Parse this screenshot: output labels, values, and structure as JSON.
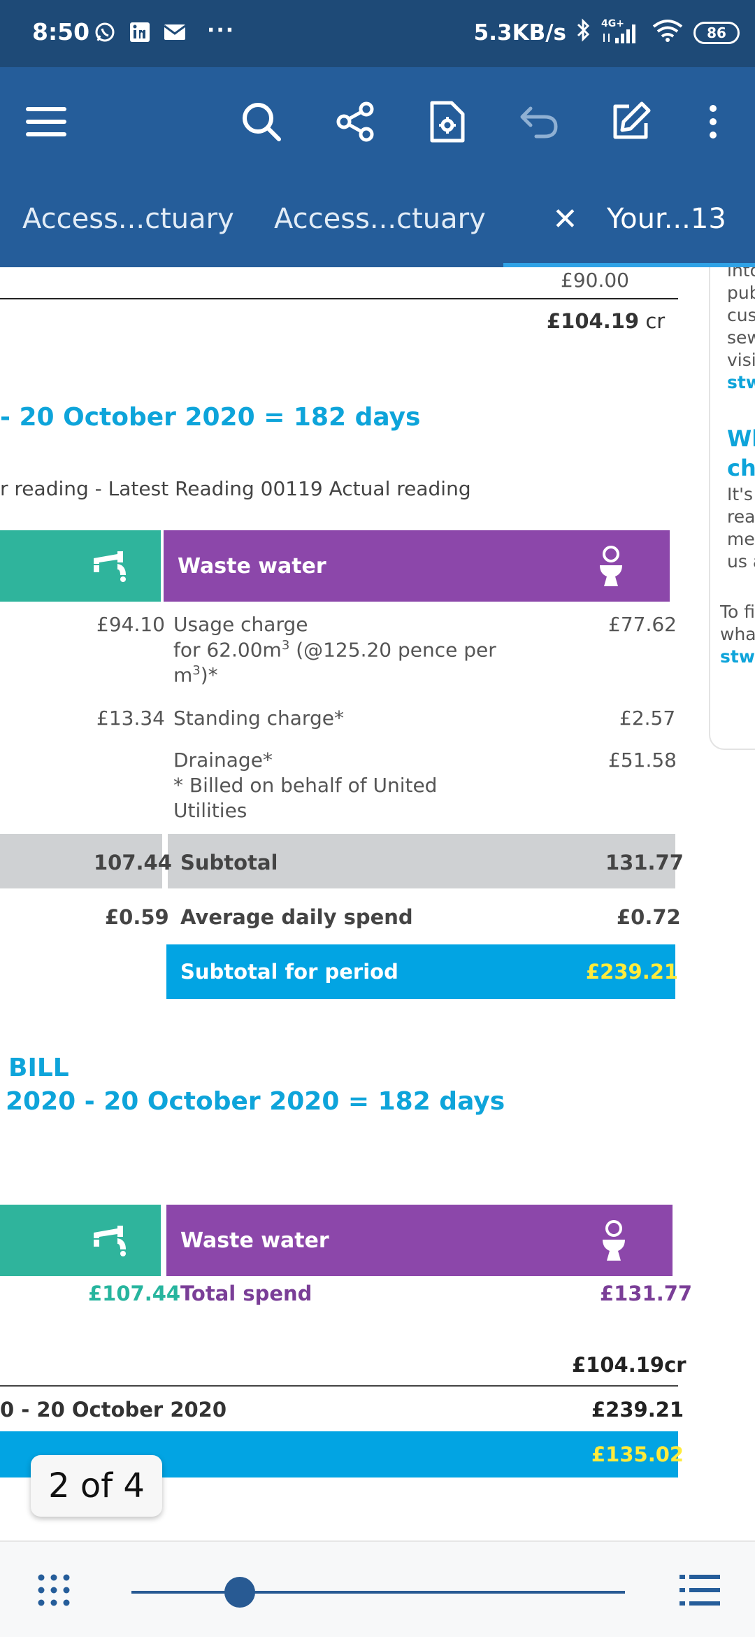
{
  "status_bar": {
    "time": "8:50",
    "speed": "5.3KB/s",
    "network": "4G+",
    "battery": "86",
    "icons": [
      "whatsapp-icon",
      "linkedin-icon",
      "mail-icon",
      "bluetooth-icon",
      "signal-icon",
      "wifi-icon"
    ],
    "overflow": "···"
  },
  "tabs": [
    {
      "label": "Access...ctuary"
    },
    {
      "label": "Access...ctuary"
    },
    {
      "label": "Your...13",
      "active": true
    }
  ],
  "tab_close": "✕",
  "document": {
    "top_value": "£90.00",
    "balance_value": "£104.19",
    "balance_suffix": "cr",
    "period_heading": "- 20 October 2020 = 182 days",
    "reading_line": "r reading  - Latest Reading 00119  Actual reading",
    "waste_header": "Waste water",
    "usage_left": "£94.10",
    "usage_label_1": "Usage charge",
    "usage_label_2": "for 62.00m",
    "usage_label_2_sup": "3",
    "usage_label_2_rest": " (@125.20 pence per",
    "usage_label_3": "m",
    "usage_label_3_sup": "3",
    "usage_label_3_rest": ")*",
    "usage_value": "£77.62",
    "standing_left": "£13.34",
    "standing_label": "Standing charge*",
    "standing_value": "£2.57",
    "drainage_label": "Drainage*",
    "drainage_note_1": " * Billed on behalf of United",
    "drainage_note_2": "Utilities",
    "drainage_value": "£51.58",
    "subtotal_left": "107.44",
    "subtotal_label": "Subtotal",
    "subtotal_value": "131.77",
    "avg_left": "£0.59",
    "avg_label": "Average daily spend",
    "avg_value": "£0.72",
    "period_total_label": "Subtotal for period",
    "period_total_value": "£239.21",
    "bill_heading_1": "BILL",
    "bill_heading_2": "2020 - 20 October 2020 = 182 days",
    "waste_header_2": "Waste water",
    "total_left": "£107.44",
    "total_label": "Total spend",
    "total_value": "£131.77",
    "brought_forward": "£104.19cr",
    "period_line_label": "0 - 20 October 2020",
    "period_line_value": "£239.21",
    "amount_due": "£135.02",
    "side_lines": [
      "into",
      "pub",
      "cus",
      "sew",
      "visi",
      "stw"
    ],
    "side_heading": [
      "Wh",
      "cha"
    ],
    "side_text": [
      "It's",
      "rea",
      "met",
      "us a"
    ],
    "side_text_2": [
      "To fi",
      "what",
      "stwa"
    ]
  },
  "page_indicator": "2 of 4",
  "slider": {
    "progress": 0.22
  },
  "colors": {
    "header": "#255d9a",
    "status": "#1e4a77",
    "teal": "#2fb49c",
    "purple": "#8c47aa",
    "cyan": "#02a4e3"
  }
}
